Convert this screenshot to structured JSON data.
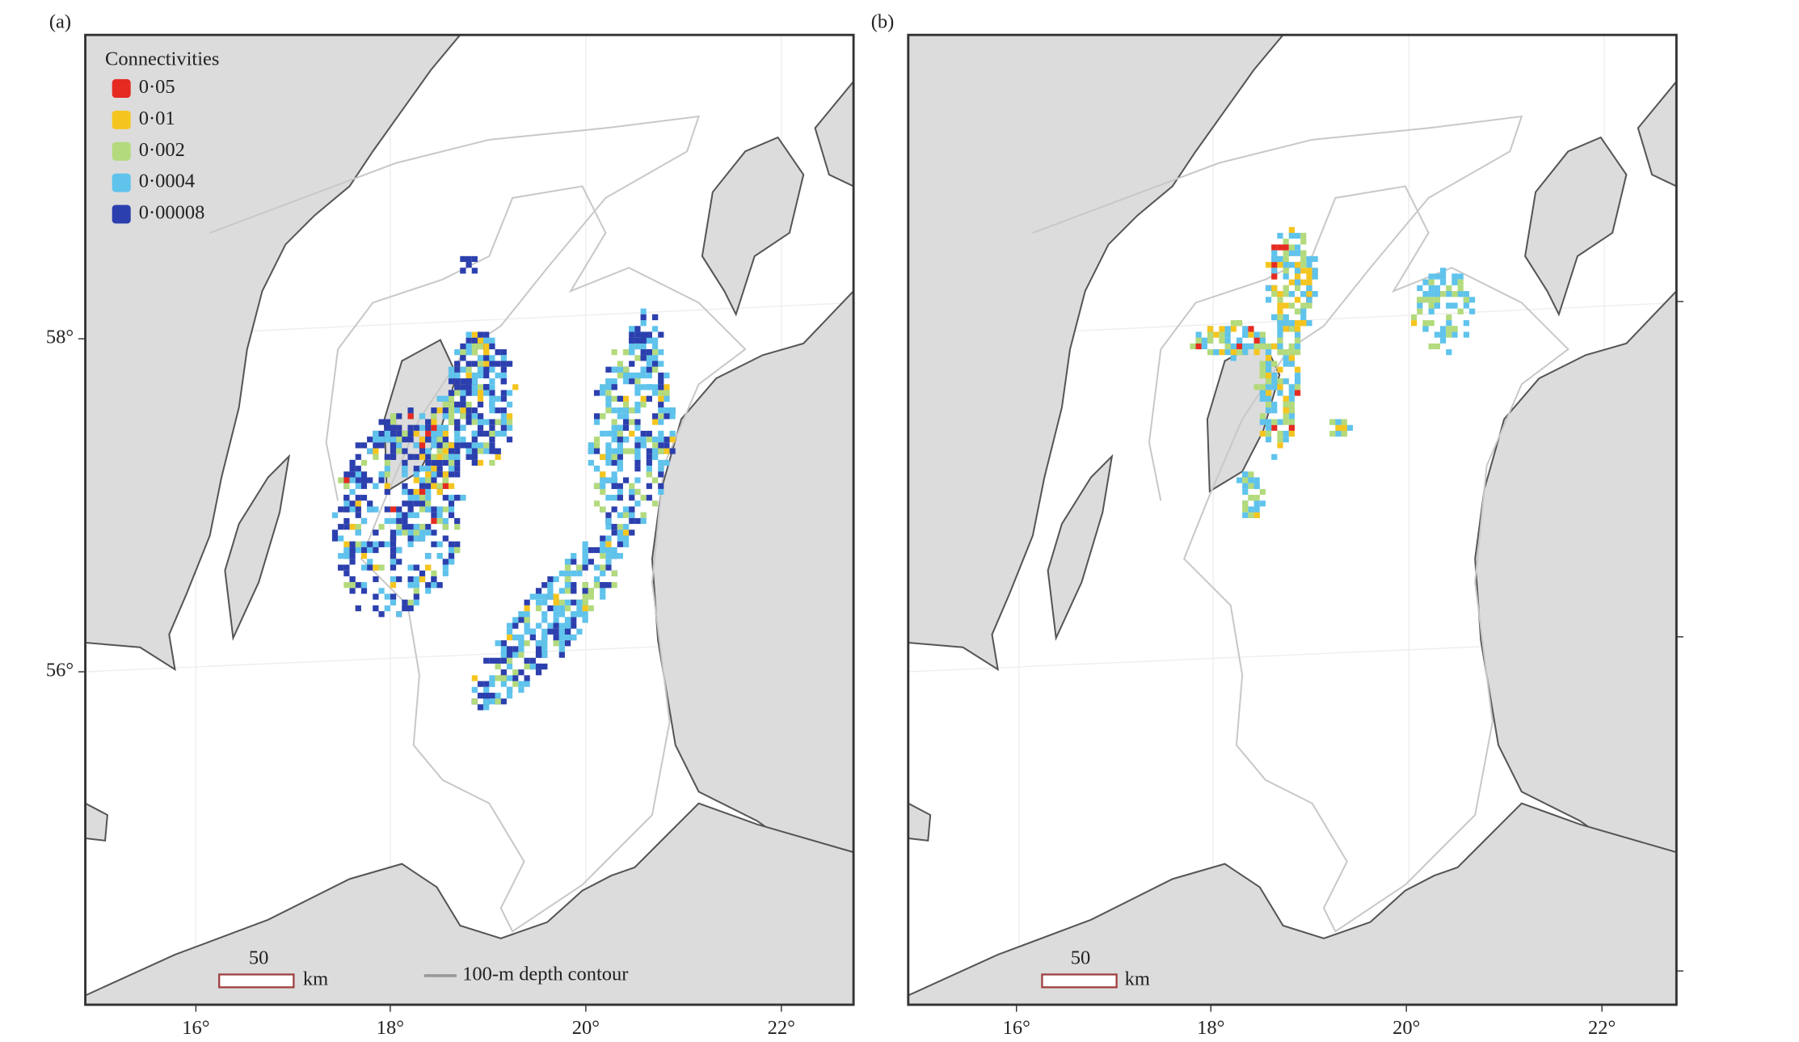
{
  "legend": {
    "title": "Connectivities",
    "items": [
      {
        "label": "0·05",
        "color": "#e62a22"
      },
      {
        "label": "0·01",
        "color": "#f5c51f"
      },
      {
        "label": "0·002",
        "color": "#b3da7c"
      },
      {
        "label": "0·0004",
        "color": "#5fc3ec"
      },
      {
        "label": "0·00008",
        "color": "#2c3fae"
      }
    ]
  },
  "depth_contour_label": "100-m depth contour",
  "panels": [
    {
      "label": "(a)",
      "x_ticks": [
        "16°",
        "18°",
        "20°",
        "22°"
      ],
      "y_ticks": [
        "58°",
        "56°"
      ],
      "scale_bar": {
        "distance": "50",
        "unit": "km"
      }
    },
    {
      "label": "(b)",
      "x_ticks": [
        "16°",
        "18°",
        "20°",
        "22°"
      ],
      "scale_bar": {
        "distance": "50",
        "unit": "km"
      }
    }
  ]
}
